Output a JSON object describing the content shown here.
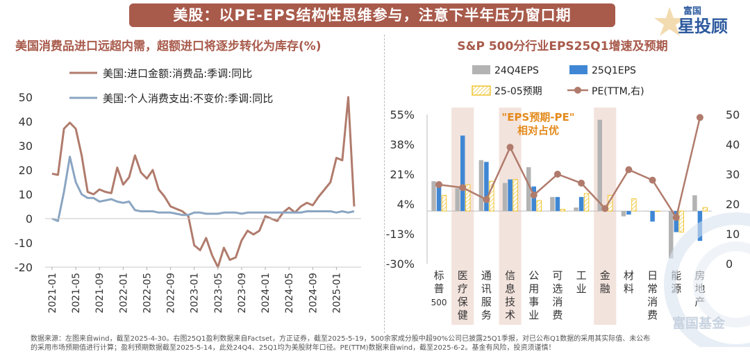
{
  "header": {
    "title": "美股：以PE-EPS结构性思维参与，注意下半年压力窗口期",
    "logo_top": "富国",
    "logo_main": "星投顾"
  },
  "footer": {
    "line1": "数据来源：左图来自wind，截至2025-4-30。右图25Q1盈利数据来自Factset，方正证券，截至2025-5-19，500余家成分股中超90%公司已披露25Q1季报，对已公布Q1数据的采用其实际值、未公布",
    "line2": "的采用市场预期值进行计算；盈利预期数据截至2025-5-14，此处24Q4、25Q1均为美股财年口径。PE(TTM)数据来自wind，截至2025-6-2。基金有风险，投资须谨慎！"
  },
  "watermark": {
    "text": "富国基金"
  },
  "chart_data": [
    {
      "type": "line",
      "title": "美国消费品进口远超内需，超额进口将逐步转化为库存(%)",
      "x": [
        "2021-01",
        "2021-02",
        "2021-03",
        "2021-04",
        "2021-05",
        "2021-06",
        "2021-07",
        "2021-08",
        "2021-09",
        "2021-10",
        "2021-11",
        "2021-12",
        "2022-01",
        "2022-02",
        "2022-03",
        "2022-04",
        "2022-05",
        "2022-06",
        "2022-07",
        "2022-08",
        "2022-09",
        "2022-10",
        "2022-11",
        "2022-12",
        "2023-01",
        "2023-02",
        "2023-03",
        "2023-04",
        "2023-05",
        "2023-06",
        "2023-07",
        "2023-08",
        "2023-09",
        "2023-10",
        "2023-11",
        "2023-12",
        "2024-01",
        "2024-02",
        "2024-03",
        "2024-04",
        "2024-05",
        "2024-06",
        "2024-07",
        "2024-08",
        "2024-09",
        "2024-10",
        "2024-11",
        "2024-12",
        "2025-01",
        "2025-02",
        "2025-03",
        "2025-04"
      ],
      "x_tick_labels": [
        "2021-01",
        "2021-05",
        "2021-09",
        "2022-01",
        "2022-05",
        "2022-09",
        "2023-01",
        "2023-05",
        "2023-09",
        "2024-01",
        "2024-05",
        "2024-09",
        "2025-01"
      ],
      "ylim": [
        -20,
        50
      ],
      "y_ticks": [
        -20,
        -10,
        0,
        10,
        20,
        30,
        40,
        50
      ],
      "legend_position": "top-left",
      "series": [
        {
          "name": "美国:进口金额:消费品:季调:同比",
          "color": "#b07b6c",
          "values": [
            18.5,
            18,
            37,
            39.5,
            37,
            26,
            11,
            10,
            12,
            11,
            10.5,
            21,
            14,
            17,
            26,
            19,
            16.5,
            20,
            12,
            9,
            5,
            4,
            3,
            1,
            -11,
            -13,
            -8,
            -15,
            -20,
            -12,
            -17,
            -16,
            -9,
            -5,
            -6.5,
            -5,
            1,
            0,
            -1,
            2.5,
            4.5,
            2.5,
            5,
            6.5,
            5.5,
            9,
            12,
            15,
            25,
            24,
            50,
            5
          ]
        },
        {
          "name": "美国:个人消费支出:不变价:季调:同比",
          "color": "#8aa5c2",
          "values": [
            0,
            -1,
            11,
            25.5,
            15,
            10,
            8.5,
            8.5,
            7,
            7.5,
            8,
            7,
            6.5,
            7,
            3.5,
            3,
            3,
            3,
            2.5,
            2.5,
            2.5,
            2,
            1.5,
            1.5,
            2.5,
            2.5,
            2,
            2,
            2,
            2.5,
            2.5,
            2.5,
            2,
            2.5,
            2.5,
            2.5,
            2.5,
            2.5,
            2.5,
            2.5,
            2.5,
            2.5,
            2.5,
            3,
            3,
            3,
            3,
            3,
            2.5,
            3,
            2.5,
            3
          ]
        }
      ]
    },
    {
      "type": "bar",
      "title": "S&P 500分行业EPS25Q1增速及预期",
      "categories": [
        "标普500",
        "医疗保健",
        "通讯服务",
        "信息技术",
        "公用事业",
        "可选消费",
        "工业",
        "金融",
        "材料",
        "日常消费",
        "能源",
        "房地产"
      ],
      "ylim": [
        -30,
        55
      ],
      "y_ticks_left": [
        "55%",
        "38%",
        "21%",
        "4%",
        "-13%",
        "-30%"
      ],
      "y2lim": [
        0,
        50
      ],
      "y_ticks_right": [
        0,
        10,
        20,
        30,
        40,
        50
      ],
      "legend_position": "top",
      "annotation": {
        "line1": "\"EPS预期-PE\"",
        "line2": "相对占优"
      },
      "highlight_categories": [
        "医疗保健",
        "信息技术",
        "金融"
      ],
      "series": [
        {
          "name": "24Q4EPS",
          "color": "#b3b3b3",
          "values": [
            17,
            13,
            29,
            16,
            25,
            8,
            2,
            52,
            -3,
            0,
            -27,
            9
          ]
        },
        {
          "name": "25Q1EPS",
          "color": "#3f87d4",
          "values": [
            15,
            43,
            28,
            18,
            14,
            8,
            8,
            2,
            -2,
            -6,
            -12,
            -17
          ]
        },
        {
          "name": "25-05预期",
          "color": "#ffffff",
          "edge": "#f0c432",
          "values": [
            9,
            15,
            17,
            18,
            6,
            1,
            10,
            9,
            7,
            0,
            -12,
            2
          ]
        },
        {
          "name": "PE(TTM,右)",
          "color": "#b07b6c",
          "axis": "right",
          "values": [
            26.5,
            25.5,
            21.5,
            39,
            23,
            30,
            27,
            18.5,
            31.5,
            28,
            15.5,
            49
          ]
        }
      ]
    }
  ]
}
